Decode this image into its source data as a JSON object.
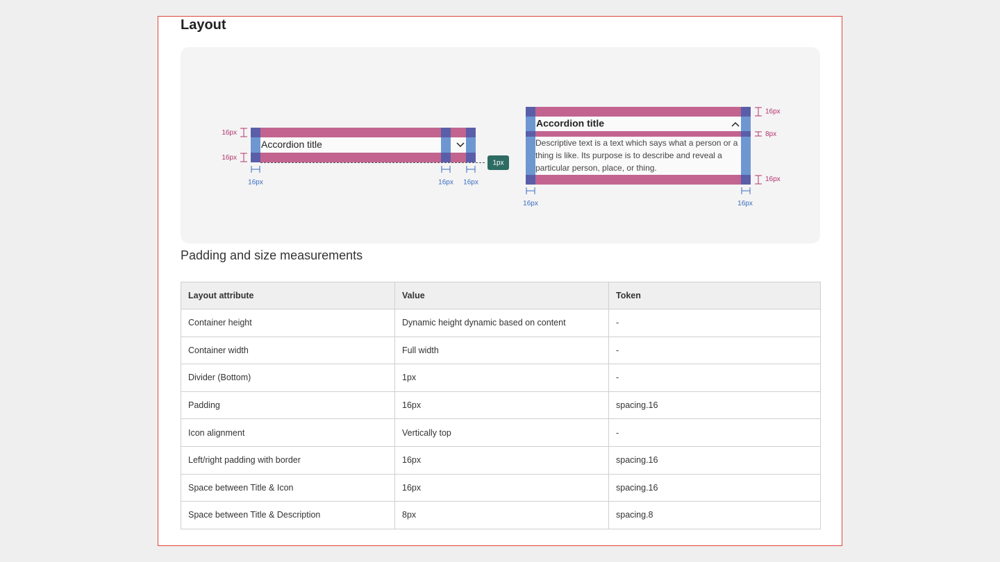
{
  "title": "Layout",
  "diagram": {
    "left": {
      "title": "Accordion title",
      "top_padding": "16px",
      "bottom_padding": "16px",
      "left_padding": "16px",
      "icon_spacing": "16px",
      "right_padding": "16px",
      "divider": "1px"
    },
    "right": {
      "title": "Accordion title",
      "description": "Descriptive text is a text which says what a person or a thing is like. Its purpose is to describe and reveal a particular person, place, or thing.",
      "top_padding": "16px",
      "title_description_spacing": "8px",
      "bottom_padding": "16px",
      "left_padding": "16px",
      "right_padding": "16px"
    }
  },
  "subtitle": "Padding and size measurements",
  "table": {
    "headers": [
      "Layout attribute",
      "Value",
      "Token"
    ],
    "rows": [
      [
        "Container height",
        "Dynamic height dynamic based on content",
        "-"
      ],
      [
        "Container width",
        "Full width",
        "-"
      ],
      [
        "Divider (Bottom)",
        "1px",
        "-"
      ],
      [
        "Padding",
        "16px",
        "spacing.16"
      ],
      [
        "Icon alignment",
        "Vertically top",
        "-"
      ],
      [
        "Left/right padding with border",
        "16px",
        "spacing.16"
      ],
      [
        "Space between Title & Icon",
        "16px",
        "spacing.16"
      ],
      [
        "Space between Title & Description",
        "8px",
        "spacing.8"
      ]
    ]
  }
}
